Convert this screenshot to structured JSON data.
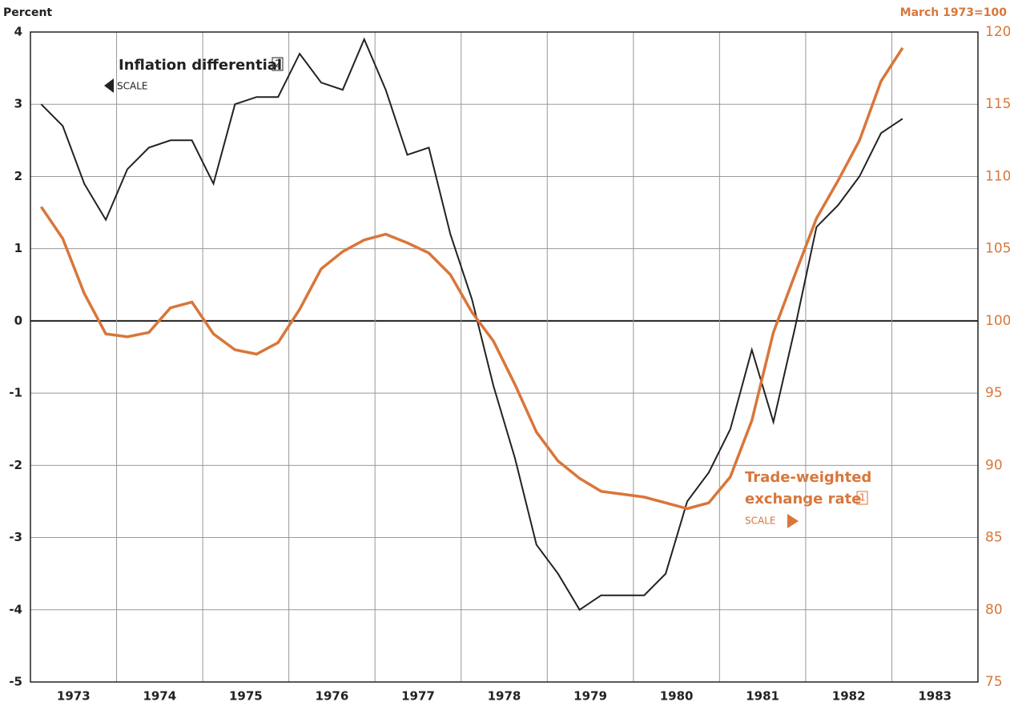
{
  "chart_data": {
    "type": "line",
    "y_label": "Percent",
    "y2_label": "March 1973=100",
    "x": [
      1973.125,
      1973.375,
      1973.625,
      1973.875,
      1974.125,
      1974.375,
      1974.625,
      1974.875,
      1975.125,
      1975.375,
      1975.625,
      1975.875,
      1976.125,
      1976.375,
      1976.625,
      1976.875,
      1977.125,
      1977.375,
      1977.625,
      1977.875,
      1978.125,
      1978.375,
      1978.625,
      1978.875,
      1979.125,
      1979.375,
      1979.625,
      1979.875,
      1980.125,
      1980.375,
      1980.625,
      1980.875,
      1981.125,
      1981.375,
      1981.625,
      1981.875,
      1982.125,
      1982.375,
      1982.625,
      1982.875,
      1983.125
    ],
    "xlim": [
      1973,
      1984
    ],
    "xticks": [
      {
        "value": 1973.5,
        "label": "1973"
      },
      {
        "value": 1974.5,
        "label": "1974"
      },
      {
        "value": 1975.5,
        "label": "1975"
      },
      {
        "value": 1976.5,
        "label": "1976"
      },
      {
        "value": 1977.5,
        "label": "1977"
      },
      {
        "value": 1978.5,
        "label": "1978"
      },
      {
        "value": 1979.5,
        "label": "1979"
      },
      {
        "value": 1980.5,
        "label": "1980"
      },
      {
        "value": 1981.5,
        "label": "1981"
      },
      {
        "value": 1982.5,
        "label": "1982"
      },
      {
        "value": 1983.5,
        "label": "1983"
      }
    ],
    "ylim": [
      -5,
      4
    ],
    "yticks": [
      -5,
      -4,
      -3,
      -2,
      -1,
      0,
      1,
      2,
      3,
      4
    ],
    "y2lim": [
      75,
      120
    ],
    "y2ticks": [
      75,
      80,
      85,
      90,
      95,
      100,
      105,
      110,
      115,
      120
    ],
    "grid": true,
    "series": [
      {
        "name": "Inflation differential",
        "footnote": "2",
        "scale": "SCALE",
        "color": "#222222",
        "values": [
          3.0,
          2.7,
          1.9,
          1.4,
          2.1,
          2.4,
          2.5,
          2.5,
          1.9,
          3.0,
          3.1,
          3.1,
          3.7,
          3.3,
          3.2,
          3.9,
          3.2,
          2.3,
          2.4,
          1.2,
          0.3,
          -0.9,
          -1.9,
          -3.1,
          -3.5,
          -4.0,
          -3.8,
          -3.8,
          -3.8,
          -3.5,
          -2.5,
          -2.1,
          -1.5,
          -0.4,
          -1.4,
          -0.1,
          1.3,
          1.6,
          2.0,
          2.6,
          2.8
        ]
      },
      {
        "name": "Trade-weighted exchange rate",
        "name_lines": [
          "Trade-weighted",
          "exchange rate"
        ],
        "footnote": "1",
        "scale": "SCALE",
        "color": "#d9763a",
        "axis": "y2",
        "values": [
          107.9,
          105.7,
          101.9,
          99.1,
          98.9,
          99.2,
          100.9,
          101.3,
          99.1,
          98.0,
          97.7,
          98.5,
          100.8,
          103.6,
          104.8,
          105.6,
          106.0,
          105.4,
          104.7,
          103.2,
          100.6,
          98.6,
          95.6,
          92.3,
          90.3,
          89.1,
          88.2,
          88.0,
          87.8,
          87.4,
          87.0,
          87.4,
          89.2,
          93.1,
          99.2,
          103.2,
          107.1,
          109.7,
          112.5,
          116.6,
          118.9
        ]
      }
    ]
  }
}
